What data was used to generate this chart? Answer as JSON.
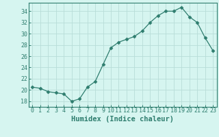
{
  "x": [
    0,
    1,
    2,
    3,
    4,
    5,
    6,
    7,
    8,
    9,
    10,
    11,
    12,
    13,
    14,
    15,
    16,
    17,
    18,
    19,
    20,
    21,
    22,
    23
  ],
  "y": [
    20.5,
    20.3,
    19.7,
    19.5,
    19.3,
    18.0,
    18.4,
    20.5,
    21.5,
    24.5,
    27.5,
    28.5,
    29.0,
    29.5,
    30.5,
    32.0,
    33.2,
    34.0,
    34.0,
    34.7,
    33.0,
    32.0,
    29.3,
    27.0
  ],
  "line_color": "#2e7d6e",
  "marker": "D",
  "marker_size": 2.5,
  "bg_color": "#d6f5f0",
  "grid_color": "#b8ddd8",
  "xlabel": "Humidex (Indice chaleur)",
  "xlim": [
    -0.5,
    23.5
  ],
  "ylim": [
    17.0,
    35.5
  ],
  "yticks": [
    18,
    20,
    22,
    24,
    26,
    28,
    30,
    32,
    34
  ],
  "xticks": [
    0,
    1,
    2,
    3,
    4,
    5,
    6,
    7,
    8,
    9,
    10,
    11,
    12,
    13,
    14,
    15,
    16,
    17,
    18,
    19,
    20,
    21,
    22,
    23
  ],
  "tick_color": "#2e7d6e",
  "axis_color": "#2e7d6e",
  "xlabel_fontsize": 7.5,
  "tick_fontsize": 6.0
}
